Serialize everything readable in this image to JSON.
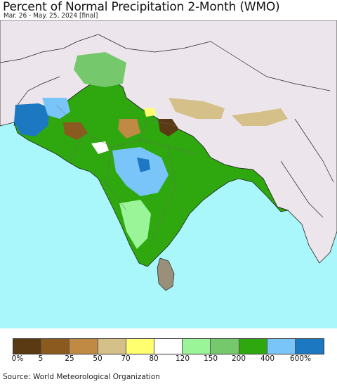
{
  "title": "Percent of Normal Precipitation 2-Month (WMO)",
  "subtitle": "Mar. 26 - May. 25, 2024 [final]",
  "source": "Source: World Meteorological Organization",
  "legend": {
    "colors": [
      "#5a3a12",
      "#8b5a1e",
      "#c08a45",
      "#d6c08a",
      "#ffff70",
      "#ffffff",
      "#99f598",
      "#76c86c",
      "#2fa80f",
      "#79c4f8",
      "#1c78c0"
    ],
    "labels": [
      "0%",
      "5",
      "25",
      "50",
      "70",
      "80",
      "120",
      "150",
      "200",
      "400",
      "600%"
    ]
  },
  "map_colors": {
    "ocean": "#aaf7fb",
    "land_outside": "#ece6ec",
    "border": "#222222"
  }
}
